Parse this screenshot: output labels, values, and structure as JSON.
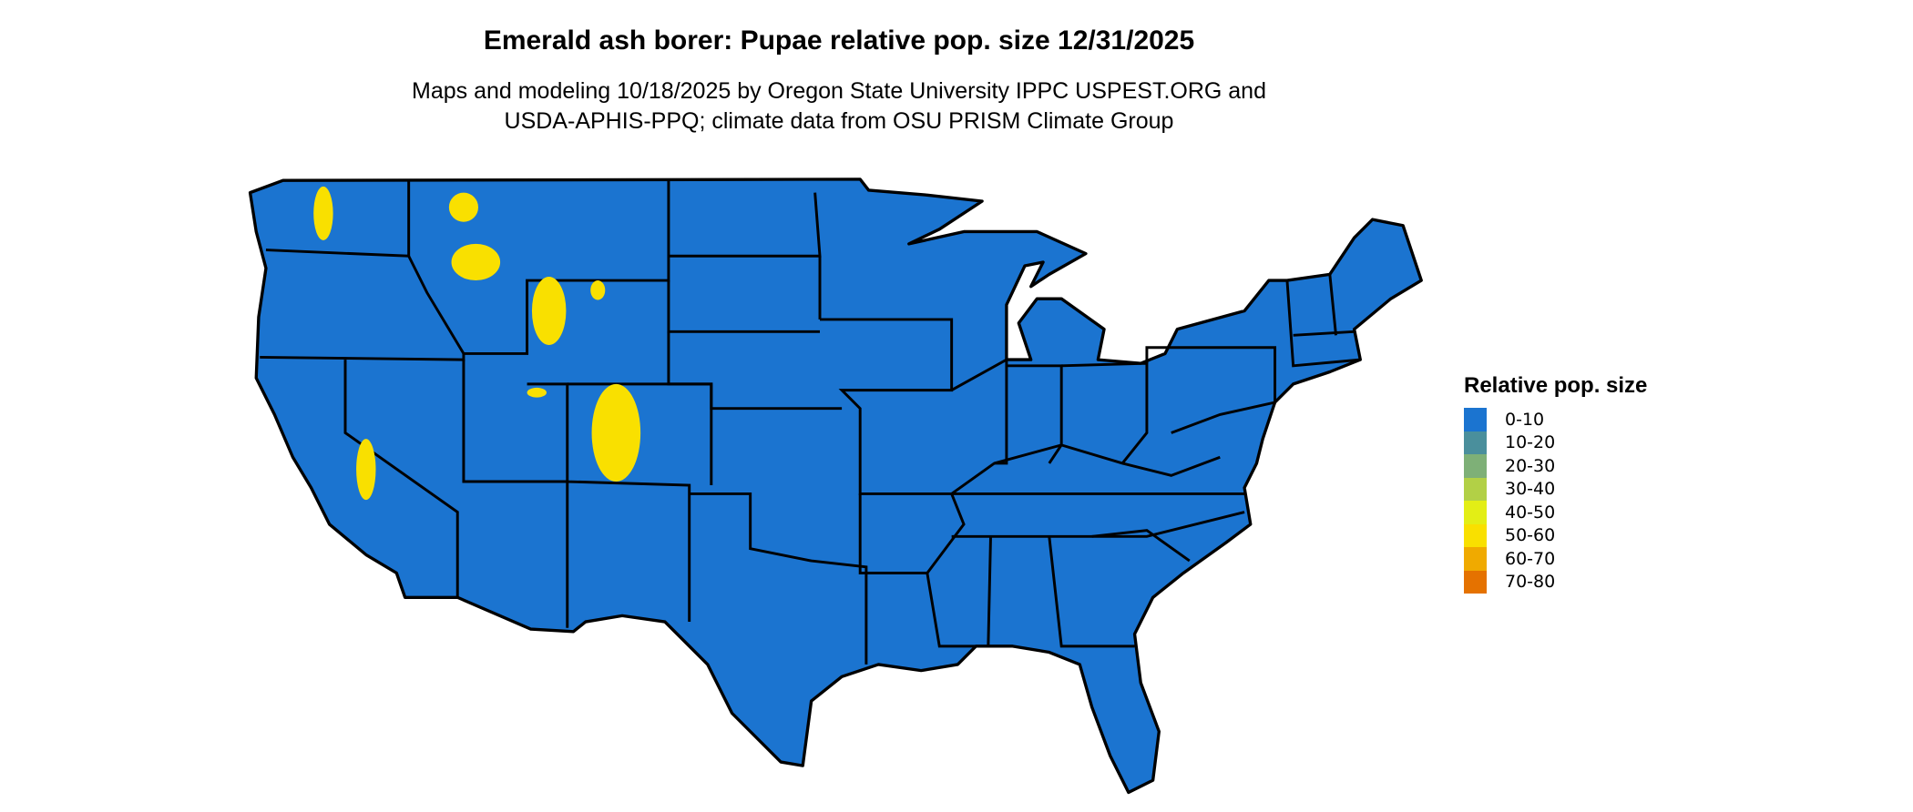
{
  "title": "Emerald ash borer: Pupae relative pop. size 12/31/2025",
  "subtitle_line1": "Maps and modeling 10/18/2025 by Oregon State University IPPC USPEST.ORG and",
  "subtitle_line2": "USDA-APHIS-PPQ; climate data from OSU PRISM Climate Group",
  "map": {
    "region": "Contiguous United States",
    "dominant_class": "0-10",
    "state_border_color": "#000000"
  },
  "legend": {
    "title": "Relative pop. size",
    "items": [
      {
        "label": "0-10",
        "color": "#1b74d0"
      },
      {
        "label": "10-20",
        "color": "#4a8f9c"
      },
      {
        "label": "20-30",
        "color": "#7eb077"
      },
      {
        "label": "30-40",
        "color": "#b2d046"
      },
      {
        "label": "40-50",
        "color": "#e3ee15"
      },
      {
        "label": "50-60",
        "color": "#f9e000"
      },
      {
        "label": "60-70",
        "color": "#f0aa00"
      },
      {
        "label": "70-80",
        "color": "#e57200"
      }
    ]
  }
}
